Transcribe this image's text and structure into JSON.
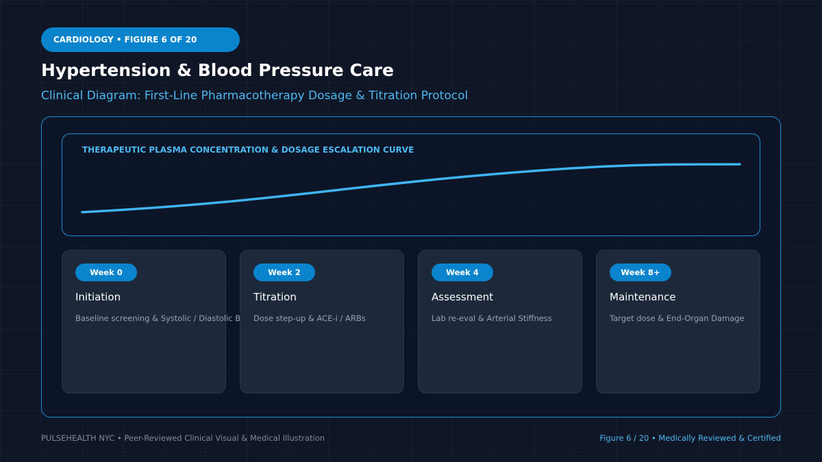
{
  "header": {
    "tag": "CARDIOLOGY • FIGURE 6 OF 20",
    "title": "Hypertension & Blood Pressure Care",
    "subtitle": "Clinical Diagram: First-Line Pharmacotherapy Dosage & Titration Protocol"
  },
  "curve": {
    "title": "THERAPEUTIC PLASMA CONCENTRATION & DOSAGE ESCALATION CURVE"
  },
  "steps": [
    {
      "badge": "Week 0",
      "title": "Initiation",
      "desc": "Baseline screening & Systolic / Diastolic BP"
    },
    {
      "badge": "Week 2",
      "title": "Titration",
      "desc": "Dose step-up & ACE-i / ARBs"
    },
    {
      "badge": "Week 4",
      "title": "Assessment",
      "desc": "Lab re-eval & Arterial Stiffness"
    },
    {
      "badge": "Week 8+",
      "title": "Maintenance",
      "desc": "Target dose & End-Organ Damage"
    }
  ],
  "footer": {
    "left": "PULSEHEALTH NYC • Peer-Reviewed Clinical Visual & Medical Illustration",
    "right": "Figure 6 / 20 • Medically Reviewed & Certified"
  }
}
